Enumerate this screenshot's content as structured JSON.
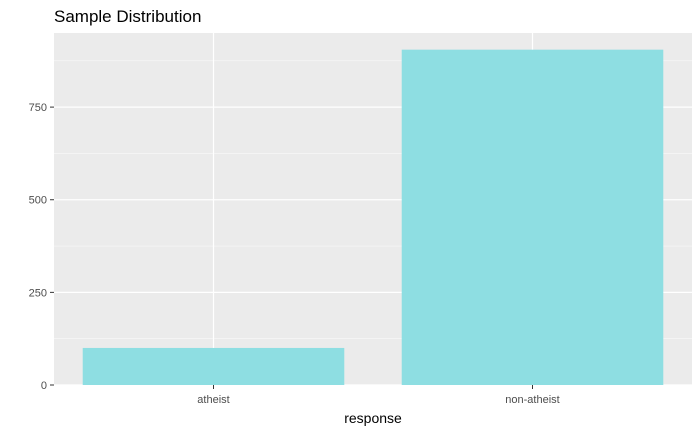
{
  "chart_data": {
    "type": "bar",
    "title": "Sample Distribution",
    "xlabel": "response",
    "ylabel": "",
    "categories": [
      "atheist",
      "non-atheist"
    ],
    "values": [
      100,
      905
    ],
    "ylim": [
      0,
      950
    ],
    "yticks": [
      0,
      250,
      500,
      750
    ],
    "ytick_labels": [
      "0",
      "250",
      "500",
      "750"
    ],
    "grid": true,
    "legend": "none",
    "colors": {
      "bar": "#8EDEE2",
      "panel": "#EBEBEB",
      "grid": "#FFFFFF"
    }
  }
}
